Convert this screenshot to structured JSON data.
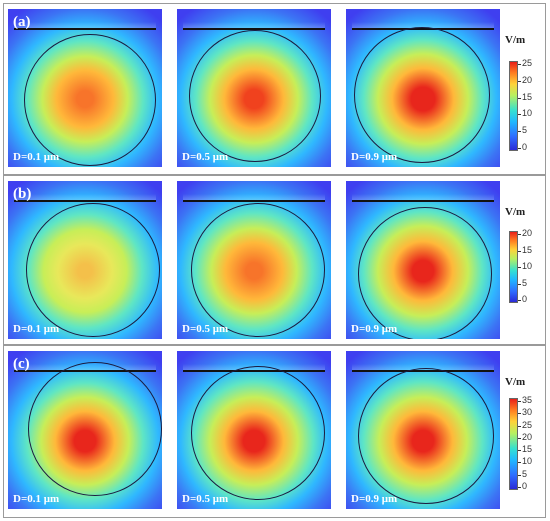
{
  "panels": [
    {
      "label": "(a)",
      "colorbar": {
        "unit": "V/m",
        "ticks": [
          "25",
          "20",
          "15",
          "10",
          "5",
          "0"
        ]
      },
      "maps": [
        {
          "label": "D=0.1 μm",
          "peak": 0.72
        },
        {
          "label": "D=0.5 μm",
          "peak": 0.82
        },
        {
          "label": "D=0.9 μm",
          "peak": 0.95
        }
      ]
    },
    {
      "label": "(b)",
      "colorbar": {
        "unit": "V/m",
        "ticks": [
          "20",
          "15",
          "10",
          "5",
          "0"
        ]
      },
      "maps": [
        {
          "label": "D=0.1 μm",
          "peak": 0.58
        },
        {
          "label": "D=0.5 μm",
          "peak": 0.72
        },
        {
          "label": "D=0.9 μm",
          "peak": 0.92
        }
      ]
    },
    {
      "label": "(c)",
      "colorbar": {
        "unit": "V/m",
        "ticks": [
          "35",
          "30",
          "25",
          "20",
          "15",
          "10",
          "5",
          "0"
        ]
      },
      "maps": [
        {
          "label": "D=0.1 μm",
          "peak": 0.86
        },
        {
          "label": "D=0.5 μm",
          "peak": 0.88
        },
        {
          "label": "D=0.9 μm",
          "peak": 0.9
        }
      ]
    }
  ]
}
